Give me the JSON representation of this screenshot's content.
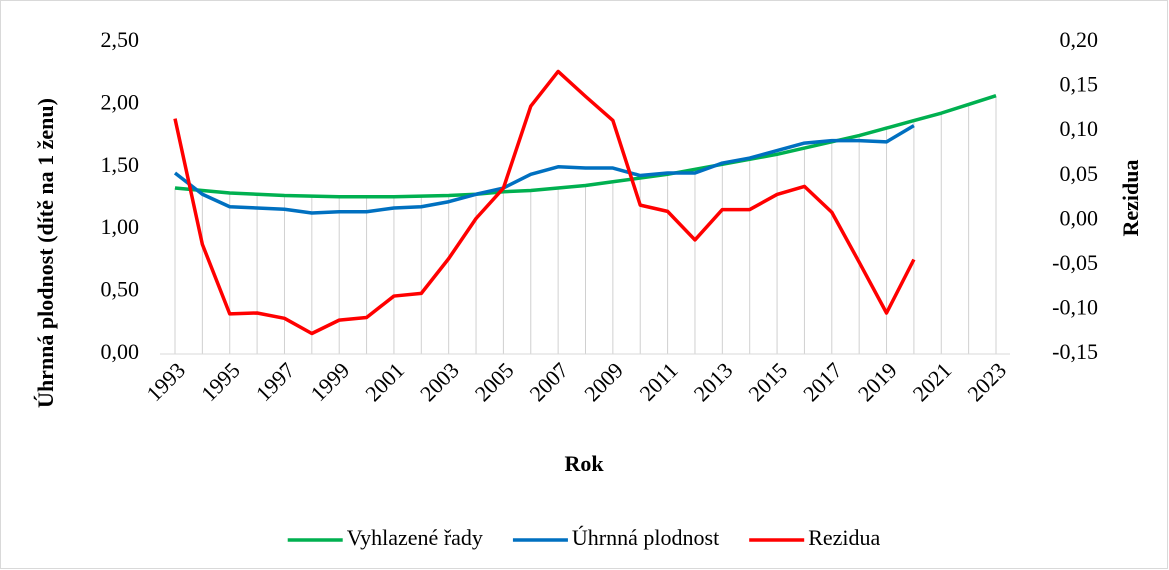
{
  "chart_data": {
    "type": "line",
    "y_label": "Úhrnná plodnost (dítě na 1 ženu)",
    "y2_label": "Rezidua",
    "x_label": "Rok",
    "x": [
      1993,
      1994,
      1995,
      1996,
      1997,
      1998,
      1999,
      2000,
      2001,
      2002,
      2003,
      2004,
      2005,
      2006,
      2007,
      2008,
      2009,
      2010,
      2011,
      2012,
      2013,
      2014,
      2015,
      2016,
      2017,
      2018,
      2019,
      2020,
      2021,
      2022,
      2023
    ],
    "xlim": [
      1993,
      2023
    ],
    "xticks": [
      1993,
      1995,
      1997,
      1999,
      2001,
      2003,
      2005,
      2007,
      2009,
      2011,
      2013,
      2015,
      2017,
      2019,
      2021,
      2023
    ],
    "ylim": [
      0,
      2.5
    ],
    "yticks": [
      {
        "value": 0,
        "label": "0,00"
      },
      {
        "value": 0.5,
        "label": "0,50"
      },
      {
        "value": 1,
        "label": "1,00"
      },
      {
        "value": 1.5,
        "label": "1,50"
      },
      {
        "value": 2,
        "label": "2,00"
      },
      {
        "value": 2.5,
        "label": "2,50"
      }
    ],
    "y2lim": [
      -0.15,
      0.2
    ],
    "y2ticks": [
      {
        "value": -0.15,
        "label": "-0,15"
      },
      {
        "value": -0.1,
        "label": "-0,10"
      },
      {
        "value": -0.05,
        "label": "-0,05"
      },
      {
        "value": 0,
        "label": "0,00"
      },
      {
        "value": 0.05,
        "label": "0,05"
      },
      {
        "value": 0.1,
        "label": "0,10"
      },
      {
        "value": 0.15,
        "label": "0,15"
      },
      {
        "value": 0.2,
        "label": "0,20"
      }
    ],
    "droplines": true,
    "legend": "bottom",
    "series": [
      {
        "name": "Vyhlazené řady",
        "color": "#00b050",
        "values": [
          1.33,
          1.31,
          1.29,
          1.28,
          1.27,
          1.265,
          1.26,
          1.26,
          1.26,
          1.265,
          1.27,
          1.28,
          1.3,
          1.31,
          1.33,
          1.35,
          1.38,
          1.41,
          1.44,
          1.48,
          1.52,
          1.56,
          1.6,
          1.65,
          1.7,
          1.75,
          1.81,
          1.87,
          1.93,
          2.0,
          2.07
        ]
      },
      {
        "name": "Úhrnná plodnost",
        "color": "#0070c0",
        "values": [
          1.45,
          1.28,
          1.18,
          1.17,
          1.16,
          1.13,
          1.14,
          1.14,
          1.17,
          1.18,
          1.22,
          1.28,
          1.33,
          1.44,
          1.5,
          1.49,
          1.49,
          1.43,
          1.45,
          1.45,
          1.53,
          1.57,
          1.63,
          1.69,
          1.71,
          1.71,
          1.7,
          1.83,
          null,
          null,
          null
        ]
      },
      {
        "name": "Rezidua",
        "color": "#ff0000",
        "axis": "y2",
        "values": [
          0.114,
          -0.027,
          -0.105,
          -0.104,
          -0.11,
          -0.127,
          -0.112,
          -0.109,
          -0.085,
          -0.082,
          -0.043,
          0.002,
          0.036,
          0.128,
          0.167,
          0.139,
          0.112,
          0.017,
          0.01,
          -0.022,
          0.012,
          0.012,
          0.029,
          0.038,
          0.009,
          -0.047,
          -0.104,
          -0.044,
          null,
          null,
          null
        ]
      }
    ]
  }
}
